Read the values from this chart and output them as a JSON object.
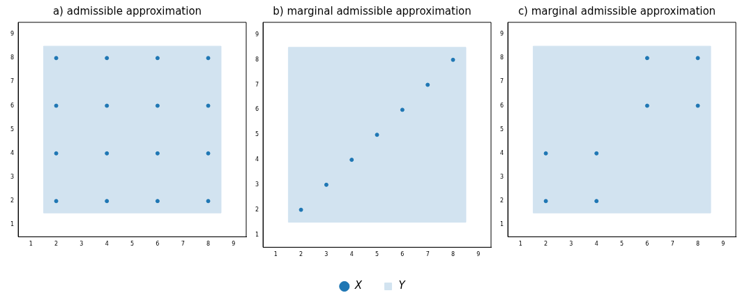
{
  "chart_data": [
    {
      "type": "scatter",
      "title": "a) admissible approximation",
      "xlim": [
        0.5,
        9.5
      ],
      "ylim": [
        0.5,
        9.5
      ],
      "xticks": [
        1,
        2,
        3,
        4,
        5,
        6,
        7,
        8,
        9
      ],
      "yticks": [
        1,
        2,
        3,
        4,
        5,
        6,
        7,
        8,
        9
      ],
      "grid": false,
      "legend": false,
      "series": [
        {
          "type": "area",
          "color": "#d2e3f0",
          "x": [
            1.5,
            1.5,
            8.5,
            8.5,
            1.5
          ],
          "values": [
            1.5,
            8.5,
            8.5,
            1.5,
            1.5
          ]
        },
        {
          "type": "scatter",
          "marker": "circle",
          "color": "#1f77b4",
          "x": [
            2,
            4,
            6,
            8,
            2,
            4,
            6,
            8,
            2,
            4,
            6,
            8,
            2,
            4,
            6,
            8
          ],
          "values": [
            2,
            2,
            2,
            2,
            4,
            4,
            4,
            4,
            6,
            6,
            6,
            6,
            8,
            8,
            8,
            8
          ]
        }
      ]
    },
    {
      "type": "scatter",
      "title": "b) marginal admissible approximation",
      "xlim": [
        0.5,
        9.5
      ],
      "ylim": [
        0.5,
        9.5
      ],
      "xticks": [
        1,
        2,
        3,
        4,
        5,
        6,
        7,
        8,
        9
      ],
      "yticks": [
        1,
        2,
        3,
        4,
        5,
        6,
        7,
        8,
        9
      ],
      "grid": false,
      "legend": "bottom",
      "series": [
        {
          "type": "area",
          "name": "Y",
          "color": "#d2e3f0",
          "x": [
            1.5,
            1.5,
            8.5,
            8.5,
            1.5
          ],
          "values": [
            1.5,
            8.5,
            8.5,
            1.5,
            1.5
          ]
        },
        {
          "type": "scatter",
          "marker": "circle",
          "name": "X",
          "color": "#1f77b4",
          "x": [
            2,
            3,
            4,
            5,
            6,
            7,
            8
          ],
          "values": [
            2,
            3,
            4,
            5,
            6,
            7,
            8
          ]
        }
      ]
    },
    {
      "type": "scatter",
      "title": "c) marginal admissible approximation",
      "xlim": [
        0.5,
        9.5
      ],
      "ylim": [
        0.5,
        9.5
      ],
      "xticks": [
        1,
        2,
        3,
        4,
        5,
        6,
        7,
        8,
        9
      ],
      "yticks": [
        1,
        2,
        3,
        4,
        5,
        6,
        7,
        8,
        9
      ],
      "grid": false,
      "legend": false,
      "series": [
        {
          "type": "area",
          "color": "#d2e3f0",
          "x": [
            1.5,
            1.5,
            8.5,
            8.5,
            1.5
          ],
          "values": [
            1.5,
            8.5,
            8.5,
            1.5,
            1.5
          ]
        },
        {
          "type": "scatter",
          "marker": "circle",
          "color": "#1f77b4",
          "x": [
            2,
            4,
            2,
            4,
            6,
            8,
            6,
            8
          ],
          "values": [
            2,
            2,
            4,
            4,
            6,
            6,
            8,
            8
          ]
        }
      ]
    }
  ]
}
